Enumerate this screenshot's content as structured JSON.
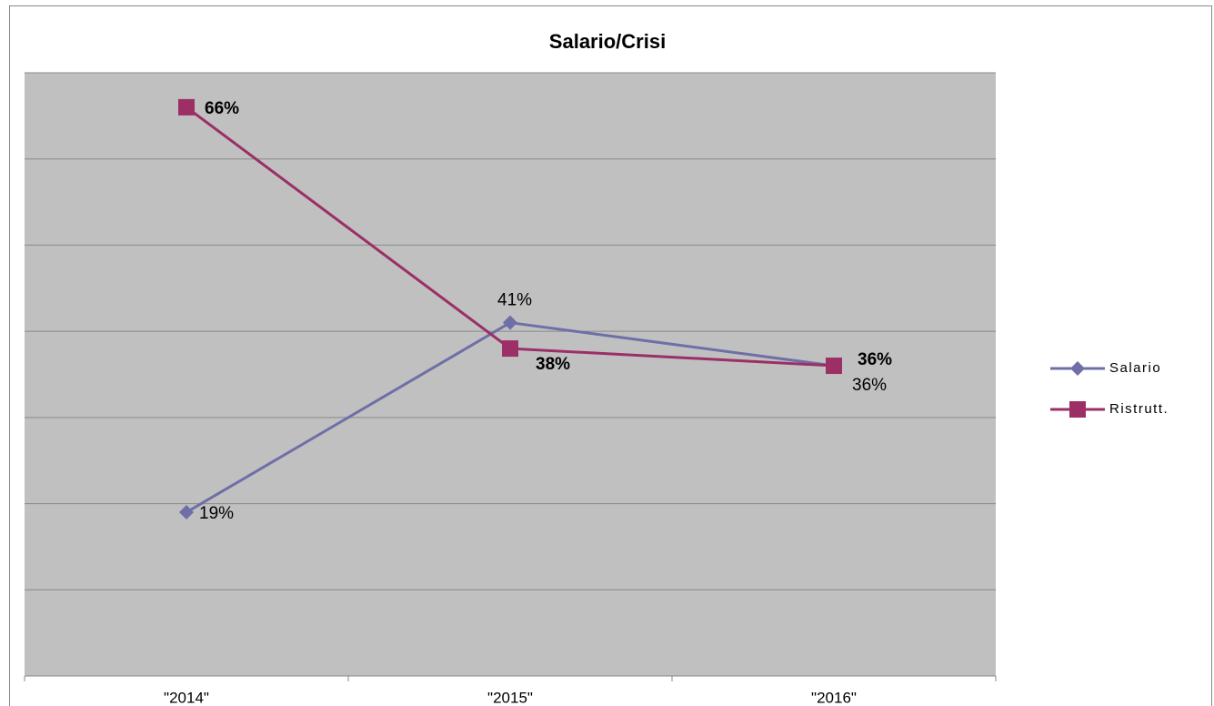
{
  "chart_data": {
    "type": "line",
    "title": "Salario/Crisi",
    "categories": [
      "\"2014\"",
      "\"2015\"",
      "\"2016\""
    ],
    "series": [
      {
        "name": "Salario",
        "color": "#6f6fa8",
        "marker": "diamond",
        "values": [
          19,
          41,
          36
        ],
        "value_labels": [
          "19%",
          "41%",
          "36%"
        ]
      },
      {
        "name": "Ristrutt.",
        "color": "#9b2f66",
        "marker": "square",
        "values": [
          66,
          38,
          36
        ],
        "value_labels": [
          "66%",
          "38%",
          "36%"
        ]
      }
    ],
    "ylim": [
      0,
      70
    ],
    "yticks": [
      0,
      10,
      20,
      30,
      40,
      50,
      60,
      70
    ],
    "grid": true,
    "legend": "right"
  }
}
